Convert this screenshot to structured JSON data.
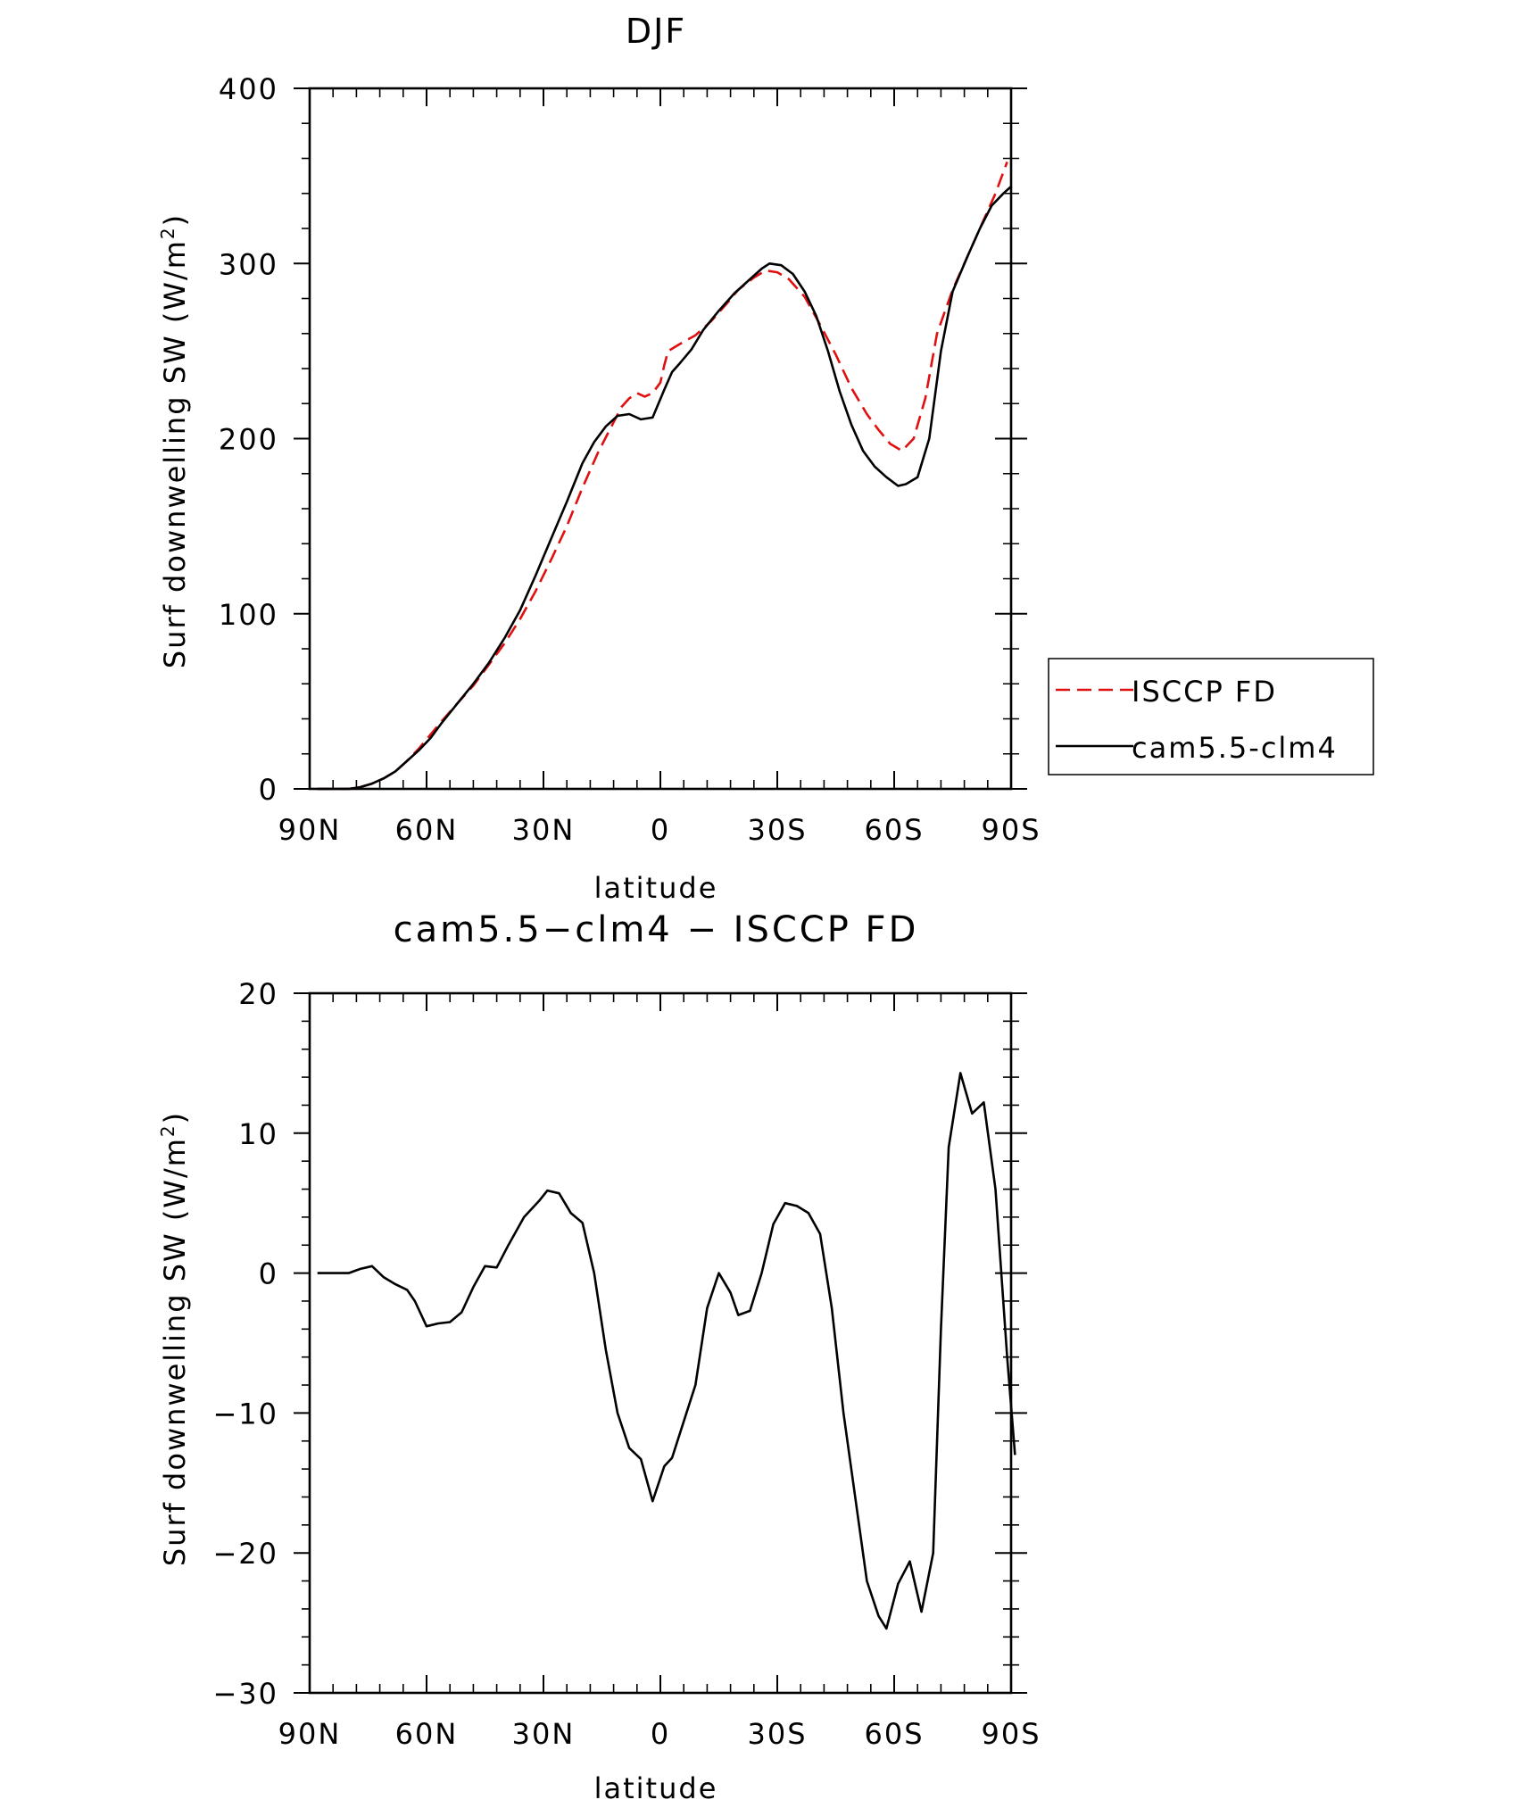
{
  "chart_data": [
    {
      "type": "line",
      "title": "DJF",
      "xlabel": "latitude",
      "ylabel": "Surf downwelling SW (W/m²)",
      "ylabel_main": "Surf downwelling SW (W/m",
      "ylabel_sup": "2",
      "ylabel_close": ")",
      "xlim": [
        -90,
        90
      ],
      "ylim": [
        0,
        400
      ],
      "x_ticks": [
        {
          "value": -90,
          "label": "90N"
        },
        {
          "value": -60,
          "label": "60N"
        },
        {
          "value": -30,
          "label": "30N"
        },
        {
          "value": 0,
          "label": "0"
        },
        {
          "value": 30,
          "label": "30S"
        },
        {
          "value": 60,
          "label": "60S"
        },
        {
          "value": 90,
          "label": "90S"
        }
      ],
      "y_ticks": [
        {
          "value": 0,
          "label": "0"
        },
        {
          "value": 100,
          "label": "100"
        },
        {
          "value": 200,
          "label": "200"
        },
        {
          "value": 300,
          "label": "300"
        },
        {
          "value": 400,
          "label": "400"
        }
      ],
      "legend_position": "right",
      "series": [
        {
          "name": "ISCCP FD",
          "color": "#e01010",
          "dash": "dashed",
          "points": [
            [
              -88,
              0
            ],
            [
              -84,
              0
            ],
            [
              -80,
              0
            ],
            [
              -77,
              1
            ],
            [
              -74,
              3
            ],
            [
              -71,
              6
            ],
            [
              -68,
              10
            ],
            [
              -65,
              16
            ],
            [
              -62,
              23
            ],
            [
              -59,
              31
            ],
            [
              -56,
              39
            ],
            [
              -52,
              49
            ],
            [
              -48,
              59
            ],
            [
              -44,
              71
            ],
            [
              -40,
              83
            ],
            [
              -36,
              97
            ],
            [
              -32,
              113
            ],
            [
              -28,
              131
            ],
            [
              -24,
              150
            ],
            [
              -20,
              172
            ],
            [
              -16,
              192
            ],
            [
              -13,
              205
            ],
            [
              -10,
              218
            ],
            [
              -8,
              223
            ],
            [
              -6,
              226
            ],
            [
              -4,
              224
            ],
            [
              -2,
              226
            ],
            [
              0,
              232
            ],
            [
              1,
              242
            ],
            [
              2,
              250
            ],
            [
              5,
              254
            ],
            [
              9,
              259
            ],
            [
              13,
              267
            ],
            [
              17,
              277
            ],
            [
              20,
              285
            ],
            [
              24,
              292
            ],
            [
              27,
              296
            ],
            [
              30,
              295
            ],
            [
              33,
              291
            ],
            [
              37,
              281
            ],
            [
              41,
              265
            ],
            [
              45,
              248
            ],
            [
              49,
              229
            ],
            [
              53,
              214
            ],
            [
              56,
              205
            ],
            [
              59,
              197
            ],
            [
              62,
              193
            ],
            [
              65,
              200
            ],
            [
              68,
              223
            ],
            [
              71,
              260
            ],
            [
              75,
              285
            ],
            [
              79,
              305
            ],
            [
              83,
              325
            ],
            [
              86,
              340
            ],
            [
              89,
              358
            ]
          ]
        },
        {
          "name": "cam5.5-clm4",
          "color": "#000000",
          "dash": "solid",
          "points": [
            [
              -88,
              0
            ],
            [
              -84,
              0
            ],
            [
              -80,
              0
            ],
            [
              -77,
              1
            ],
            [
              -74,
              3
            ],
            [
              -71,
              6
            ],
            [
              -68,
              10
            ],
            [
              -65,
              16
            ],
            [
              -62,
              22
            ],
            [
              -59,
              29
            ],
            [
              -56,
              38
            ],
            [
              -52,
              49
            ],
            [
              -48,
              60
            ],
            [
              -44,
              72
            ],
            [
              -40,
              86
            ],
            [
              -36,
              102
            ],
            [
              -32,
              122
            ],
            [
              -28,
              143
            ],
            [
              -24,
              164
            ],
            [
              -20,
              186
            ],
            [
              -17,
              198
            ],
            [
              -14,
              207
            ],
            [
              -11,
              213
            ],
            [
              -8,
              214
            ],
            [
              -5,
              211
            ],
            [
              -2,
              212
            ],
            [
              1,
              228
            ],
            [
              3,
              238
            ],
            [
              5,
              243
            ],
            [
              8,
              251
            ],
            [
              11,
              262
            ],
            [
              15,
              273
            ],
            [
              19,
              283
            ],
            [
              23,
              291
            ],
            [
              26,
              297
            ],
            [
              28,
              300
            ],
            [
              31,
              299
            ],
            [
              34,
              294
            ],
            [
              37,
              284
            ],
            [
              40,
              270
            ],
            [
              43,
              250
            ],
            [
              46,
              227
            ],
            [
              49,
              208
            ],
            [
              52,
              193
            ],
            [
              55,
              184
            ],
            [
              58,
              178
            ],
            [
              61,
              173
            ],
            [
              63,
              174
            ],
            [
              66,
              178
            ],
            [
              69,
              200
            ],
            [
              72,
              250
            ],
            [
              75,
              284
            ],
            [
              79,
              305
            ],
            [
              82,
              320
            ],
            [
              85,
              333
            ],
            [
              88,
              340
            ],
            [
              90,
              344
            ]
          ]
        }
      ]
    },
    {
      "type": "line",
      "title": "cam5.5−clm4 − ISCCP FD",
      "xlabel": "latitude",
      "ylabel": "Surf downwelling SW (W/m²)",
      "ylabel_main": "Surf downwelling SW (W/m",
      "ylabel_sup": "2",
      "ylabel_close": ")",
      "xlim": [
        -90,
        90
      ],
      "ylim": [
        -30,
        20
      ],
      "x_ticks": [
        {
          "value": -90,
          "label": "90N"
        },
        {
          "value": -60,
          "label": "60N"
        },
        {
          "value": -30,
          "label": "30N"
        },
        {
          "value": 0,
          "label": "0"
        },
        {
          "value": 30,
          "label": "30S"
        },
        {
          "value": 60,
          "label": "60S"
        },
        {
          "value": 90,
          "label": "90S"
        }
      ],
      "y_ticks": [
        {
          "value": -30,
          "label": "−30"
        },
        {
          "value": -20,
          "label": "−20"
        },
        {
          "value": -10,
          "label": "−10"
        },
        {
          "value": 0,
          "label": "0"
        },
        {
          "value": 10,
          "label": "10"
        },
        {
          "value": 20,
          "label": "20"
        }
      ],
      "series": [
        {
          "color": "#000000",
          "dash": "solid",
          "points": [
            [
              -88,
              0
            ],
            [
              -80,
              0
            ],
            [
              -77,
              0.3
            ],
            [
              -74,
              0.5
            ],
            [
              -71,
              -0.3
            ],
            [
              -68,
              -0.8
            ],
            [
              -65,
              -1.2
            ],
            [
              -63,
              -2
            ],
            [
              -60,
              -3.8
            ],
            [
              -57,
              -3.6
            ],
            [
              -54,
              -3.5
            ],
            [
              -51,
              -2.8
            ],
            [
              -48,
              -1
            ],
            [
              -45,
              0.5
            ],
            [
              -42,
              0.4
            ],
            [
              -39,
              2
            ],
            [
              -35,
              4
            ],
            [
              -31,
              5.2
            ],
            [
              -29,
              5.9
            ],
            [
              -26,
              5.7
            ],
            [
              -23,
              4.3
            ],
            [
              -20,
              3.6
            ],
            [
              -17,
              0
            ],
            [
              -14,
              -5.5
            ],
            [
              -11,
              -10
            ],
            [
              -8,
              -12.5
            ],
            [
              -5,
              -13.3
            ],
            [
              -2,
              -16.3
            ],
            [
              1,
              -13.8
            ],
            [
              3,
              -13.2
            ],
            [
              6,
              -10.6
            ],
            [
              9,
              -8
            ],
            [
              12,
              -2.5
            ],
            [
              15,
              0
            ],
            [
              18,
              -1.4
            ],
            [
              20,
              -3
            ],
            [
              23,
              -2.7
            ],
            [
              26,
              0
            ],
            [
              29,
              3.5
            ],
            [
              32,
              5
            ],
            [
              35,
              4.8
            ],
            [
              38,
              4.3
            ],
            [
              41,
              2.8
            ],
            [
              44,
              -2.5
            ],
            [
              47,
              -10
            ],
            [
              50,
              -16
            ],
            [
              53,
              -22
            ],
            [
              56,
              -24.5
            ],
            [
              58,
              -25.4
            ],
            [
              61,
              -22.2
            ],
            [
              64,
              -20.6
            ],
            [
              67,
              -24.2
            ],
            [
              70,
              -20
            ],
            [
              72,
              -4
            ],
            [
              74,
              9
            ],
            [
              77,
              14.3
            ],
            [
              80,
              11.4
            ],
            [
              83,
              12.2
            ],
            [
              86,
              6
            ],
            [
              89,
              -6
            ],
            [
              91,
              -13
            ]
          ]
        }
      ]
    }
  ]
}
